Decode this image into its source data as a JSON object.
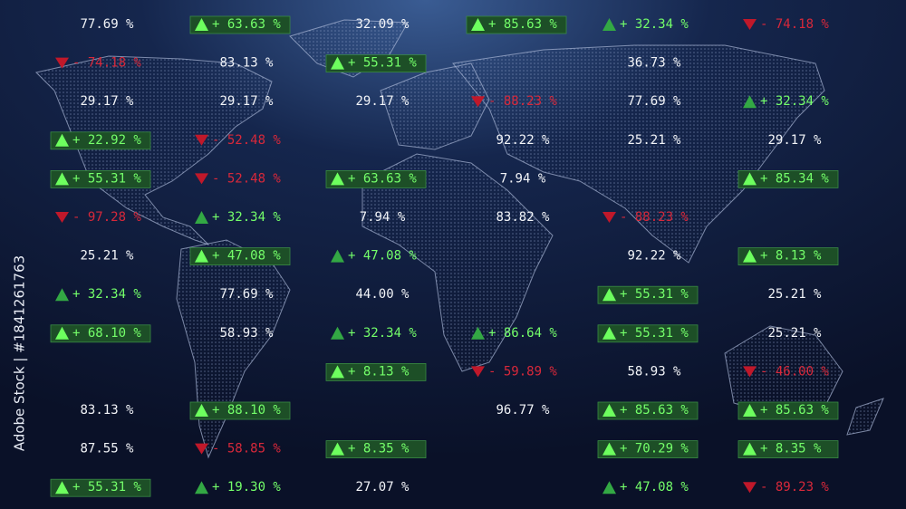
{
  "watermark": "Adobe Stock | #1841261763",
  "columns": [
    [
      {
        "text": "77.69 %",
        "trend": "flat"
      },
      {
        "text": "- 74.18 %",
        "trend": "down"
      },
      {
        "text": "29.17 %",
        "trend": "flat"
      },
      {
        "text": "+ 22.92 %",
        "trend": "upbox"
      },
      {
        "text": "+ 55.31 %",
        "trend": "upbox"
      },
      {
        "text": "- 97.28 %",
        "trend": "down"
      },
      {
        "text": "25.21 %",
        "trend": "flat"
      },
      {
        "text": "+ 32.34 %",
        "trend": "up"
      },
      {
        "text": "+ 68.10 %",
        "trend": "upbox"
      },
      null,
      {
        "text": "83.13 %",
        "trend": "flat"
      },
      {
        "text": "87.55 %",
        "trend": "flat"
      },
      {
        "text": "+ 55.31 %",
        "trend": "upbox"
      }
    ],
    [
      {
        "text": "+ 63.63 %",
        "trend": "upbox"
      },
      {
        "text": "83.13 %",
        "trend": "flat"
      },
      {
        "text": "29.17 %",
        "trend": "flat"
      },
      {
        "text": "- 52.48 %",
        "trend": "down"
      },
      {
        "text": "- 52.48 %",
        "trend": "down"
      },
      {
        "text": "+ 32.34 %",
        "trend": "up"
      },
      {
        "text": "+ 47.08 %",
        "trend": "upbox"
      },
      {
        "text": "77.69 %",
        "trend": "flat"
      },
      {
        "text": "58.93 %",
        "trend": "flat"
      },
      null,
      {
        "text": "+ 88.10 %",
        "trend": "upbox"
      },
      {
        "text": "- 58.85 %",
        "trend": "down"
      },
      {
        "text": "+ 19.30 %",
        "trend": "up"
      }
    ],
    [
      {
        "text": "32.09 %",
        "trend": "flat"
      },
      {
        "text": "+ 55.31 %",
        "trend": "upbox"
      },
      {
        "text": "29.17 %",
        "trend": "flat"
      },
      null,
      {
        "text": "+ 63.63 %",
        "trend": "upbox"
      },
      {
        "text": "7.94 %",
        "trend": "flat"
      },
      {
        "text": "+ 47.08 %",
        "trend": "up"
      },
      {
        "text": "44.00 %",
        "trend": "flat"
      },
      {
        "text": "+ 32.34 %",
        "trend": "up"
      },
      {
        "text": "+ 8.13 %",
        "trend": "upbox"
      },
      null,
      {
        "text": "+ 8.35 %",
        "trend": "upbox"
      },
      {
        "text": "27.07 %",
        "trend": "flat"
      }
    ],
    [
      {
        "text": "+ 85.63 %",
        "trend": "upbox"
      },
      null,
      {
        "text": "- 88.23 %",
        "trend": "down"
      },
      {
        "text": "92.22 %",
        "trend": "flat"
      },
      {
        "text": "7.94 %",
        "trend": "flat"
      },
      {
        "text": "83.82 %",
        "trend": "flat"
      },
      null,
      null,
      {
        "text": "+ 86.64 %",
        "trend": "up"
      },
      {
        "text": "- 59.89 %",
        "trend": "down"
      },
      {
        "text": "96.77 %",
        "trend": "flat"
      },
      null,
      null
    ],
    [
      {
        "text": "+ 32.34 %",
        "trend": "up"
      },
      {
        "text": "36.73 %",
        "trend": "flat"
      },
      {
        "text": "77.69 %",
        "trend": "flat"
      },
      {
        "text": "25.21 %",
        "trend": "flat"
      },
      null,
      {
        "text": "- 88.23 %",
        "trend": "down"
      },
      {
        "text": "92.22 %",
        "trend": "flat"
      },
      {
        "text": "+ 55.31 %",
        "trend": "upbox"
      },
      {
        "text": "+ 55.31 %",
        "trend": "upbox"
      },
      {
        "text": "58.93 %",
        "trend": "flat"
      },
      {
        "text": "+ 85.63 %",
        "trend": "upbox"
      },
      {
        "text": "+ 70.29 %",
        "trend": "upbox"
      },
      {
        "text": "+ 47.08 %",
        "trend": "up"
      }
    ],
    [
      {
        "text": "- 74.18 %",
        "trend": "down"
      },
      null,
      {
        "text": "+ 32.34 %",
        "trend": "up"
      },
      {
        "text": "29.17 %",
        "trend": "flat"
      },
      {
        "text": "+ 85.34 %",
        "trend": "upbox"
      },
      null,
      {
        "text": "+ 8.13 %",
        "trend": "upbox"
      },
      {
        "text": "25.21 %",
        "trend": "flat"
      },
      {
        "text": "25.21 %",
        "trend": "flat"
      },
      {
        "text": "- 46.00 %",
        "trend": "down"
      },
      {
        "text": "+ 85.63 %",
        "trend": "upbox"
      },
      {
        "text": "+ 8.35 %",
        "trend": "upbox"
      },
      {
        "text": "- 89.23 %",
        "trend": "down"
      }
    ]
  ]
}
